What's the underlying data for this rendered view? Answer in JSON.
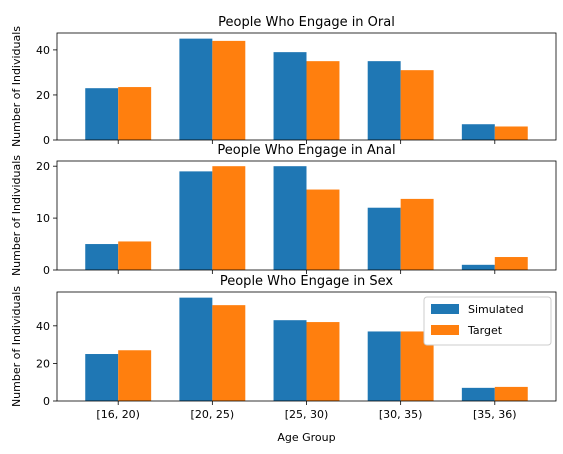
{
  "chart_data": [
    {
      "type": "bar",
      "title": "People Who Engage in Oral",
      "xlabel": "",
      "ylabel": "Number of Individuals",
      "categories": [
        "[16, 20)",
        "[20, 25)",
        "[25, 30)",
        "[30, 35)",
        "[35, 36)"
      ],
      "series": [
        {
          "name": "Simulated",
          "values": [
            23,
            45,
            39,
            35,
            7
          ]
        },
        {
          "name": "Target",
          "values": [
            23.5,
            44,
            35,
            31,
            6
          ]
        }
      ],
      "ylim": [
        0,
        47.5
      ],
      "yticks": [
        0,
        20,
        40
      ],
      "show_xticklabels": false
    },
    {
      "type": "bar",
      "title": "People Who Engage in Anal",
      "xlabel": "",
      "ylabel": "Number of Individuals",
      "categories": [
        "[16, 20)",
        "[20, 25)",
        "[25, 30)",
        "[30, 35)",
        "[35, 36)"
      ],
      "series": [
        {
          "name": "Simulated",
          "values": [
            5,
            19,
            20,
            12,
            1
          ]
        },
        {
          "name": "Target",
          "values": [
            5.5,
            20,
            15.5,
            13.7,
            2.5
          ]
        }
      ],
      "ylim": [
        0,
        21
      ],
      "yticks": [
        0,
        10,
        20
      ],
      "show_xticklabels": false
    },
    {
      "type": "bar",
      "title": "People Who Engage in Sex",
      "xlabel": "Age Group",
      "ylabel": "Number of Individuals",
      "categories": [
        "[16, 20)",
        "[20, 25)",
        "[25, 30)",
        "[30, 35)",
        "[35, 36)"
      ],
      "series": [
        {
          "name": "Simulated",
          "values": [
            25,
            55,
            43,
            37,
            7
          ]
        },
        {
          "name": "Target",
          "values": [
            27,
            51,
            42,
            37,
            7.5
          ]
        }
      ],
      "ylim": [
        0,
        58
      ],
      "yticks": [
        0,
        20,
        40
      ],
      "show_xticklabels": true,
      "legend": "top-right"
    }
  ],
  "colors": {
    "Simulated": "#1f77b4",
    "Target": "#ff7f0e"
  }
}
